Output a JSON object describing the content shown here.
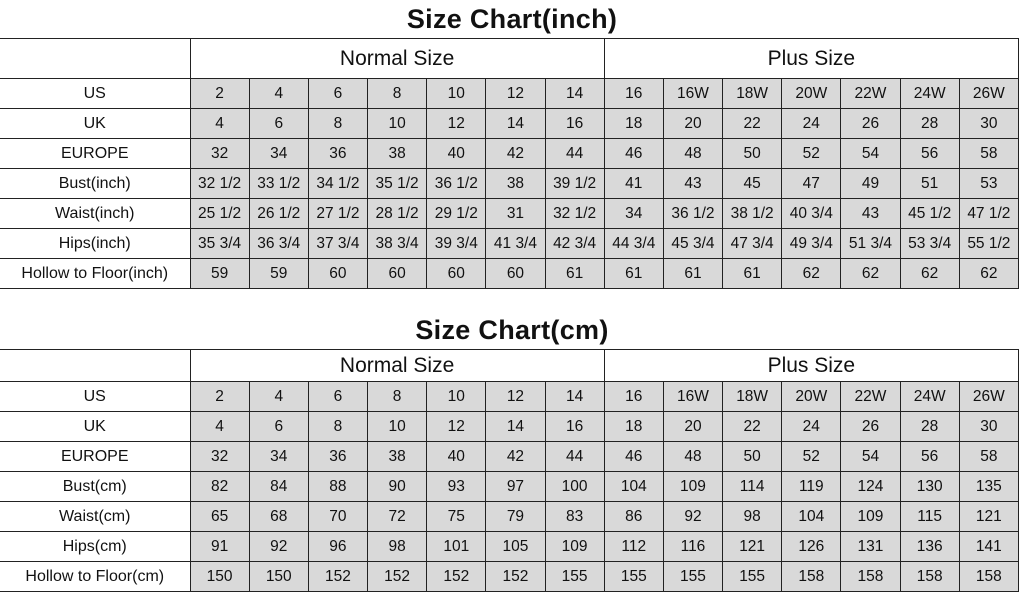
{
  "charts": [
    {
      "title": "Size Chart(inch)",
      "groups": [
        "Normal Size",
        "Plus Size"
      ],
      "rows": [
        {
          "label": "US",
          "values": [
            "2",
            "4",
            "6",
            "8",
            "10",
            "12",
            "14",
            "16",
            "16W",
            "18W",
            "20W",
            "22W",
            "24W",
            "26W"
          ]
        },
        {
          "label": "UK",
          "values": [
            "4",
            "6",
            "8",
            "10",
            "12",
            "14",
            "16",
            "18",
            "20",
            "22",
            "24",
            "26",
            "28",
            "30"
          ]
        },
        {
          "label": "EUROPE",
          "values": [
            "32",
            "34",
            "36",
            "38",
            "40",
            "42",
            "44",
            "46",
            "48",
            "50",
            "52",
            "54",
            "56",
            "58"
          ]
        },
        {
          "label": "Bust(inch)",
          "values": [
            "32 1/2",
            "33 1/2",
            "34 1/2",
            "35 1/2",
            "36 1/2",
            "38",
            "39 1/2",
            "41",
            "43",
            "45",
            "47",
            "49",
            "51",
            "53"
          ]
        },
        {
          "label": "Waist(inch)",
          "values": [
            "25 1/2",
            "26 1/2",
            "27 1/2",
            "28 1/2",
            "29 1/2",
            "31",
            "32 1/2",
            "34",
            "36 1/2",
            "38 1/2",
            "40 3/4",
            "43",
            "45 1/2",
            "47 1/2"
          ]
        },
        {
          "label": "Hips(inch)",
          "values": [
            "35 3/4",
            "36 3/4",
            "37 3/4",
            "38 3/4",
            "39 3/4",
            "41 3/4",
            "42 3/4",
            "44 3/4",
            "45 3/4",
            "47 3/4",
            "49 3/4",
            "51 3/4",
            "53 3/4",
            "55 1/2"
          ]
        },
        {
          "label": "Hollow to Floor(inch)",
          "values": [
            "59",
            "59",
            "60",
            "60",
            "60",
            "60",
            "61",
            "61",
            "61",
            "61",
            "62",
            "62",
            "62",
            "62"
          ]
        }
      ]
    },
    {
      "title": "Size Chart(cm)",
      "groups": [
        "Normal Size",
        "Plus Size"
      ],
      "rows": [
        {
          "label": "US",
          "values": [
            "2",
            "4",
            "6",
            "8",
            "10",
            "12",
            "14",
            "16",
            "16W",
            "18W",
            "20W",
            "22W",
            "24W",
            "26W"
          ]
        },
        {
          "label": "UK",
          "values": [
            "4",
            "6",
            "8",
            "10",
            "12",
            "14",
            "16",
            "18",
            "20",
            "22",
            "24",
            "26",
            "28",
            "30"
          ]
        },
        {
          "label": "EUROPE",
          "values": [
            "32",
            "34",
            "36",
            "38",
            "40",
            "42",
            "44",
            "46",
            "48",
            "50",
            "52",
            "54",
            "56",
            "58"
          ]
        },
        {
          "label": "Bust(cm)",
          "values": [
            "82",
            "84",
            "88",
            "90",
            "93",
            "97",
            "100",
            "104",
            "109",
            "114",
            "119",
            "124",
            "130",
            "135"
          ]
        },
        {
          "label": "Waist(cm)",
          "values": [
            "65",
            "68",
            "70",
            "72",
            "75",
            "79",
            "83",
            "86",
            "92",
            "98",
            "104",
            "109",
            "115",
            "121"
          ]
        },
        {
          "label": "Hips(cm)",
          "values": [
            "91",
            "92",
            "96",
            "98",
            "101",
            "105",
            "109",
            "112",
            "116",
            "121",
            "126",
            "131",
            "136",
            "141"
          ]
        },
        {
          "label": "Hollow to Floor(cm)",
          "values": [
            "150",
            "150",
            "152",
            "152",
            "152",
            "152",
            "155",
            "155",
            "155",
            "155",
            "158",
            "158",
            "158",
            "158"
          ]
        }
      ]
    }
  ],
  "colors": {
    "cell_fill": "#d9d9d9",
    "border": "#222222"
  }
}
